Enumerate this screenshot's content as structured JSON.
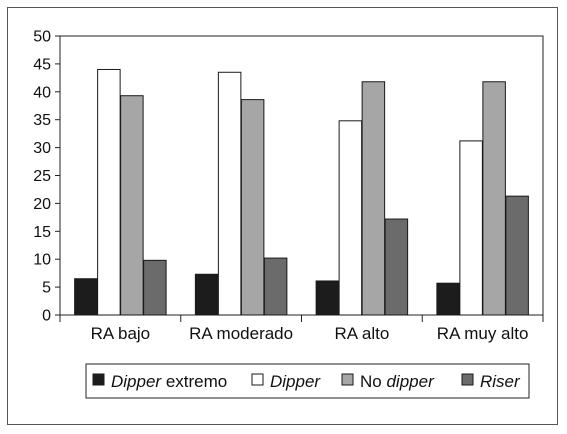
{
  "chart_data": {
    "type": "bar",
    "categories": [
      "RA bajo",
      "RA moderado",
      "RA alto",
      "RA muy alto"
    ],
    "series": [
      {
        "name": "Dipper extremo",
        "values": [
          6.5,
          7.3,
          6.1,
          5.7
        ]
      },
      {
        "name": "Dipper",
        "values": [
          44.0,
          43.5,
          34.8,
          31.2
        ]
      },
      {
        "name": "No dipper",
        "values": [
          39.3,
          38.6,
          41.8,
          41.8
        ]
      },
      {
        "name": "Riser",
        "values": [
          9.8,
          10.2,
          17.2,
          21.3
        ]
      }
    ],
    "yticks": [
      "0",
      "5",
      "10",
      "15",
      "20",
      "25",
      "30",
      "35",
      "40",
      "45",
      "50"
    ],
    "ylim": [
      0,
      50
    ],
    "grid": false,
    "legend_position": "bottom",
    "colors": [
      "#1c1c1c",
      "#ffffff",
      "#a6a6a6",
      "#6b6b6b"
    ]
  },
  "legend": [
    {
      "segments": [
        {
          "text": "Dipper",
          "italic": true
        },
        {
          "text": " extremo",
          "italic": false
        }
      ]
    },
    {
      "segments": [
        {
          "text": "Dipper",
          "italic": true
        }
      ]
    },
    {
      "segments": [
        {
          "text": "No ",
          "italic": false
        },
        {
          "text": "dipper",
          "italic": true
        }
      ]
    },
    {
      "segments": [
        {
          "text": "Riser",
          "italic": true
        }
      ]
    }
  ]
}
